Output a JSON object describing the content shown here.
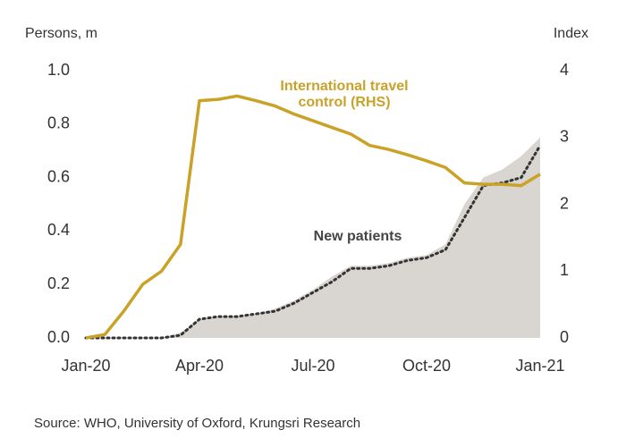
{
  "chart_data": {
    "type": "combo",
    "y_label": "Persons, m",
    "y2_label": "Index",
    "source": "Source: WHO, University of Oxford, Krungsri Research",
    "categories": [
      "Jan-20",
      null,
      null,
      null,
      null,
      null,
      "Apr-20",
      null,
      null,
      null,
      null,
      null,
      "Jul-20",
      null,
      null,
      null,
      null,
      null,
      "Oct-20",
      null,
      null,
      null,
      null,
      null,
      "Jan-21"
    ],
    "series": [
      {
        "name": "New patients",
        "kind": "area",
        "color": "#d9d5d0",
        "values": [
          0,
          0,
          0,
          0,
          0,
          0.02,
          0.07,
          0.08,
          0.08,
          0.09,
          0.11,
          0.14,
          0.18,
          0.23,
          0.27,
          0.27,
          0.28,
          0.3,
          0.31,
          0.35,
          0.5,
          0.6,
          0.63,
          0.68,
          0.75
        ]
      },
      {
        "kind": "dotted-line",
        "color": "#333333",
        "values": [
          0,
          0,
          0,
          0,
          0,
          0.01,
          0.07,
          0.08,
          0.08,
          0.09,
          0.1,
          0.13,
          0.17,
          0.21,
          0.26,
          0.26,
          0.27,
          0.29,
          0.3,
          0.33,
          0.45,
          0.57,
          0.58,
          0.6,
          0.72
        ]
      },
      {
        "name": "International travel control (RHS)",
        "kind": "line",
        "axis": "y2",
        "color": "#c9a227",
        "values": [
          0,
          0.05,
          0.4,
          0.8,
          1.0,
          1.4,
          3.55,
          3.57,
          3.62,
          3.55,
          3.47,
          3.35,
          3.25,
          3.15,
          3.05,
          2.88,
          2.82,
          2.74,
          2.65,
          2.55,
          2.32,
          2.3,
          2.3,
          2.28,
          2.45
        ]
      }
    ],
    "ylim": [
      0,
      1.0
    ],
    "yticks": [
      {
        "value": 0,
        "label": "0.0"
      },
      0.2,
      0.4,
      0.6,
      0.8,
      {
        "value": 1.0,
        "label": "1.0"
      }
    ],
    "y2lim": [
      0,
      4
    ],
    "y2ticks": [
      0,
      1,
      2,
      3,
      4
    ],
    "grid": false
  }
}
